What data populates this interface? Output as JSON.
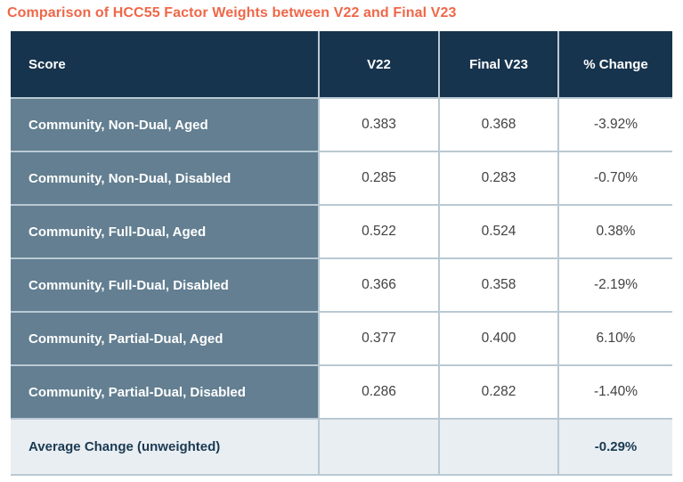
{
  "chart_data": {
    "type": "table",
    "title": "Comparison of HCC55 Factor Weights between V22 and Final V23",
    "columns": [
      "Score",
      "V22",
      "Final V23",
      "% Change"
    ],
    "rows": [
      [
        "Community, Non-Dual, Aged",
        "0.383",
        "0.368",
        "-3.92%"
      ],
      [
        "Community, Non-Dual, Disabled",
        "0.285",
        "0.283",
        "-0.70%"
      ],
      [
        "Community, Full-Dual, Aged",
        "0.522",
        "0.524",
        "0.38%"
      ],
      [
        "Community, Full-Dual, Disabled",
        "0.366",
        "0.358",
        "-2.19%"
      ],
      [
        "Community, Partial-Dual, Aged",
        "0.377",
        "0.400",
        "6.10%"
      ],
      [
        "Community, Partial-Dual, Disabled",
        "0.286",
        "0.282",
        "-1.40%"
      ]
    ],
    "footer": [
      "Average Change (unweighted)",
      "",
      "",
      "-0.29%"
    ],
    "layout": {
      "legend": "none",
      "grid": "cell-borders"
    }
  },
  "colors": {
    "title": "#EF6748",
    "header_bg": "#17344E",
    "header_text": "#FFFFFF",
    "row_label_bg": "#637F91",
    "row_label_text": "#FFFFFF",
    "data_cell_bg": "#FFFFFF",
    "data_text": "#424242",
    "footer_bg": "#E9EEF2",
    "footer_text": "#1A3A52",
    "border": "#BAC9D3"
  }
}
